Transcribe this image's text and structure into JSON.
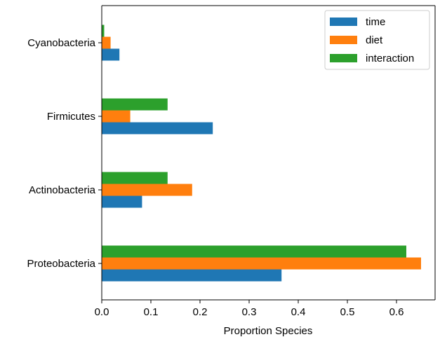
{
  "chart_data": {
    "type": "bar",
    "orientation": "horizontal",
    "categories": [
      "Proteobacteria",
      "Actinobacteria",
      "Firmicutes",
      "Cyanobacteria"
    ],
    "series": [
      {
        "name": "time",
        "color": "#1f77b4",
        "values": [
          0.366,
          0.082,
          0.226,
          0.036
        ]
      },
      {
        "name": "diet",
        "color": "#ff7f0e",
        "values": [
          0.65,
          0.184,
          0.058,
          0.018
        ]
      },
      {
        "name": "interaction",
        "color": "#2ca02c",
        "values": [
          0.62,
          0.134,
          0.134,
          0.005
        ]
      }
    ],
    "xlabel": "Proportion Species",
    "ylabel": "",
    "xlim": [
      0,
      0.68
    ],
    "xticks": [
      "0.0",
      "0.1",
      "0.2",
      "0.3",
      "0.4",
      "0.5",
      "0.6"
    ],
    "grid": false,
    "legend_position": "top-right"
  }
}
